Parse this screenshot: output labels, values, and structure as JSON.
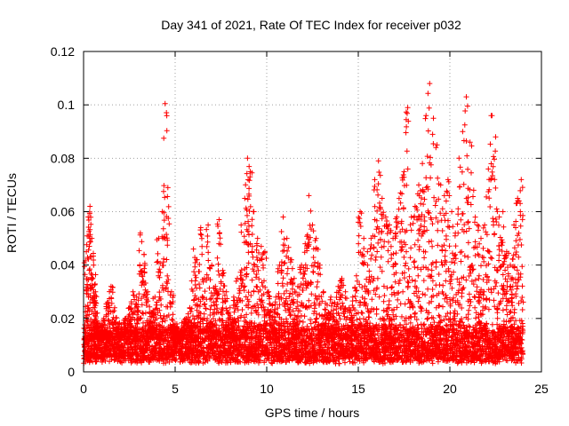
{
  "chart_data": {
    "type": "scatter",
    "title": "Day 341 of 2021, Rate Of TEC Index for receiver p032",
    "xlabel": "GPS time / hours",
    "ylabel": "ROTI / TECUs",
    "xlim": [
      0,
      25
    ],
    "ylim": [
      0,
      0.12
    ],
    "x_ticks": [
      0,
      5,
      10,
      15,
      20,
      25
    ],
    "y_ticks": [
      0,
      0.02,
      0.04,
      0.06,
      0.08,
      0.1,
      0.12
    ],
    "x_tick_labels": [
      "0",
      "5",
      "10",
      "15",
      "20",
      "25"
    ],
    "y_tick_labels": [
      "0",
      "0.02",
      "0.04",
      "0.06",
      "0.08",
      "0.1",
      "0.12"
    ],
    "grid": true,
    "marker": "+",
    "color": "#ff0000",
    "series": [
      {
        "x": [
          0.05,
          0.15,
          0.25,
          0.35,
          0.45,
          0.55,
          0.65,
          0.75,
          0.9,
          1.1,
          1.3,
          1.5,
          1.7,
          1.9,
          2.1,
          2.3,
          2.5,
          2.7,
          2.9,
          3.1,
          3.3,
          3.5,
          3.7,
          3.9,
          4.1,
          4.3,
          4.45,
          4.6,
          4.8,
          5.0,
          5.2,
          5.4,
          5.6,
          5.8,
          6.0,
          6.2,
          6.4,
          6.6,
          6.8,
          7.0,
          7.2,
          7.4,
          7.6,
          7.8,
          8.0,
          8.2,
          8.4,
          8.6,
          8.8,
          8.95,
          9.1,
          9.3,
          9.5,
          9.7,
          9.9,
          10.1,
          10.3,
          10.5,
          10.7,
          10.9,
          11.1,
          11.3,
          11.5,
          11.7,
          11.9,
          12.1,
          12.3,
          12.5,
          12.7,
          12.9,
          13.1,
          13.3,
          13.5,
          13.7,
          13.9,
          14.1,
          14.3,
          14.5,
          14.7,
          14.9,
          15.1,
          15.3,
          15.5,
          15.7,
          15.9,
          16.1,
          16.3,
          16.5,
          16.7,
          16.9,
          17.1,
          17.3,
          17.5,
          17.7,
          17.9,
          18.1,
          18.3,
          18.5,
          18.7,
          18.9,
          19.1,
          19.3,
          19.5,
          19.7,
          19.9,
          20.1,
          20.3,
          20.5,
          20.7,
          20.9,
          21.1,
          21.3,
          21.5,
          21.7,
          21.9,
          22.1,
          22.3,
          22.5,
          22.7,
          22.9,
          23.1,
          23.3,
          23.5,
          23.7,
          23.9
        ],
        "y": [
          0.012,
          0.045,
          0.058,
          0.062,
          0.05,
          0.04,
          0.03,
          0.022,
          0.018,
          0.02,
          0.026,
          0.032,
          0.024,
          0.018,
          0.016,
          0.02,
          0.024,
          0.03,
          0.028,
          0.052,
          0.044,
          0.03,
          0.022,
          0.028,
          0.05,
          0.06,
          0.1005,
          0.069,
          0.03,
          0.018,
          0.014,
          0.016,
          0.02,
          0.024,
          0.046,
          0.042,
          0.054,
          0.035,
          0.055,
          0.04,
          0.032,
          0.057,
          0.038,
          0.03,
          0.024,
          0.028,
          0.035,
          0.055,
          0.065,
          0.08,
          0.075,
          0.06,
          0.05,
          0.047,
          0.045,
          0.03,
          0.025,
          0.028,
          0.04,
          0.058,
          0.05,
          0.042,
          0.035,
          0.032,
          0.04,
          0.048,
          0.066,
          0.055,
          0.05,
          0.04,
          0.03,
          0.025,
          0.028,
          0.026,
          0.032,
          0.035,
          0.03,
          0.024,
          0.028,
          0.036,
          0.06,
          0.05,
          0.045,
          0.05,
          0.072,
          0.079,
          0.065,
          0.058,
          0.055,
          0.05,
          0.058,
          0.067,
          0.075,
          0.099,
          0.058,
          0.062,
          0.07,
          0.078,
          0.096,
          0.108,
          0.095,
          0.085,
          0.07,
          0.066,
          0.072,
          0.06,
          0.052,
          0.08,
          0.09,
          0.103,
          0.086,
          0.068,
          0.055,
          0.05,
          0.055,
          0.076,
          0.096,
          0.088,
          0.058,
          0.06,
          0.045,
          0.04,
          0.055,
          0.065,
          0.072
        ],
        "noise_floor": [
          0.003,
          0.015
        ]
      }
    ]
  }
}
